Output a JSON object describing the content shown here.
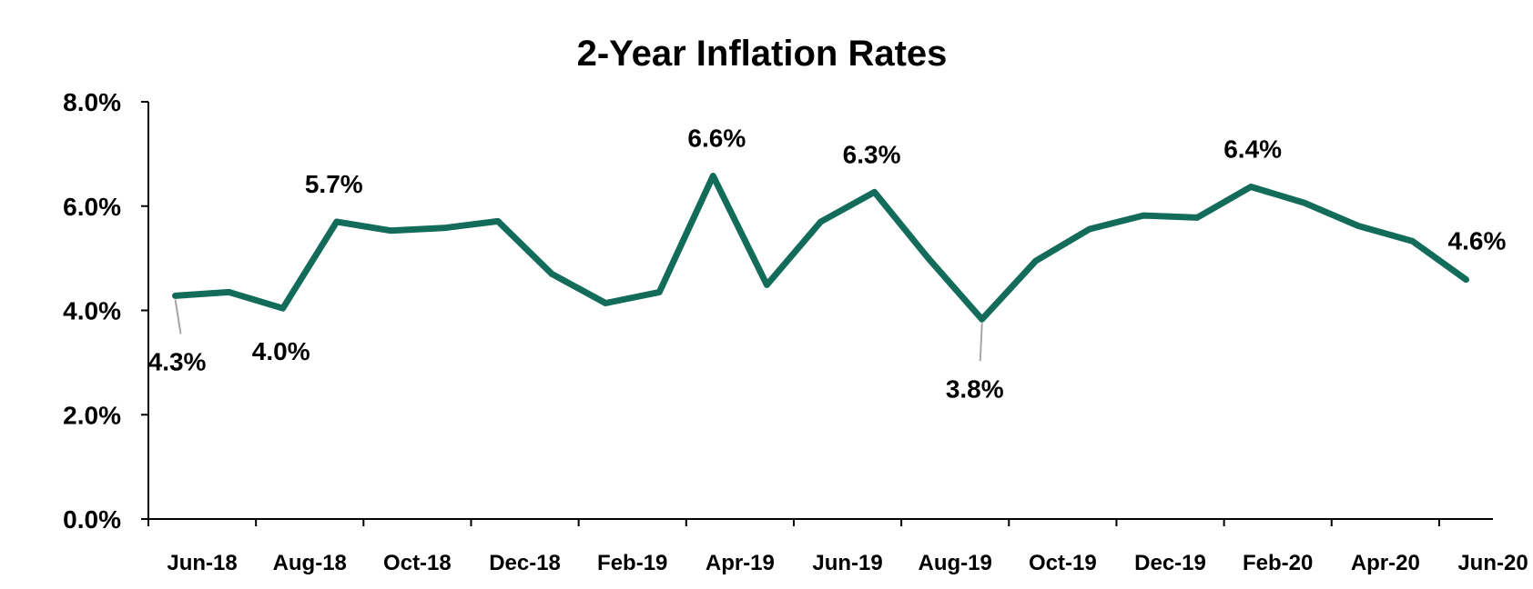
{
  "chart_data": {
    "type": "line",
    "title": "2-Year Inflation Rates",
    "xlabel": "",
    "ylabel": "",
    "ylim": [
      0,
      8
    ],
    "yticks": [
      "0.0%",
      "2.0%",
      "4.0%",
      "6.0%",
      "8.0%"
    ],
    "grid": false,
    "legend": "none",
    "line_color": "#136c5a",
    "x_tick_labels": [
      "Jun-18",
      "Aug-18",
      "Oct-18",
      "Dec-18",
      "Feb-19",
      "Apr-19",
      "Jun-19",
      "Aug-19",
      "Oct-19",
      "Dec-19",
      "Feb-20",
      "Apr-20",
      "Jun-20"
    ],
    "categories": [
      "Jun-18",
      "Jul-18",
      "Aug-18",
      "Sep-18",
      "Oct-18",
      "Nov-18",
      "Dec-18",
      "Jan-19",
      "Feb-19",
      "Mar-19",
      "Apr-19",
      "May-19",
      "Jun-19",
      "Jul-19",
      "Aug-19",
      "Sep-19",
      "Oct-19",
      "Nov-19",
      "Dec-19",
      "Jan-20",
      "Feb-20",
      "Mar-20",
      "Apr-20",
      "May-20",
      "Jun-20"
    ],
    "values": [
      4.28,
      4.35,
      4.04,
      5.7,
      5.53,
      5.58,
      5.71,
      4.7,
      4.14,
      4.35,
      6.58,
      4.49,
      5.7,
      6.27,
      5.0,
      3.83,
      4.95,
      5.56,
      5.82,
      5.78,
      6.37,
      6.06,
      5.62,
      5.33,
      4.59
    ],
    "data_labels": [
      {
        "index": 0,
        "text": "4.3%"
      },
      {
        "index": 2,
        "text": "4.0%"
      },
      {
        "index": 3,
        "text": "5.7%"
      },
      {
        "index": 10,
        "text": "6.6%"
      },
      {
        "index": 13,
        "text": "6.3%"
      },
      {
        "index": 15,
        "text": "3.8%"
      },
      {
        "index": 20,
        "text": "6.4%"
      },
      {
        "index": 24,
        "text": "4.6%"
      }
    ]
  }
}
